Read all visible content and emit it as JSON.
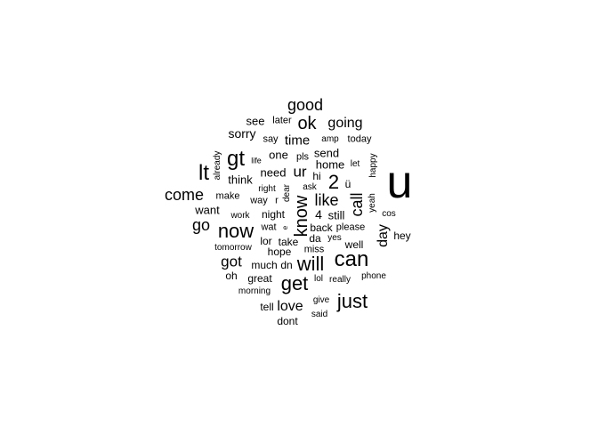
{
  "word_cloud": {
    "text_color": "#000000",
    "background_color": "#ffffff",
    "words": [
      {
        "text": "u",
        "weight": 1.0,
        "vertical": false
      },
      {
        "text": "lt",
        "weight": 0.45,
        "vertical": false
      },
      {
        "text": "gt",
        "weight": 0.45,
        "vertical": false
      },
      {
        "text": "can",
        "weight": 0.45,
        "vertical": false
      },
      {
        "text": "now",
        "weight": 0.4,
        "vertical": false
      },
      {
        "text": "will",
        "weight": 0.4,
        "vertical": false
      },
      {
        "text": "get",
        "weight": 0.4,
        "vertical": false
      },
      {
        "text": "just",
        "weight": 0.38,
        "vertical": false
      },
      {
        "text": "know",
        "weight": 0.38,
        "vertical": true
      },
      {
        "text": "ok",
        "weight": 0.35,
        "vertical": false
      },
      {
        "text": "2",
        "weight": 0.38,
        "vertical": false
      },
      {
        "text": "good",
        "weight": 0.3,
        "vertical": false
      },
      {
        "text": "going",
        "weight": 0.28,
        "vertical": false
      },
      {
        "text": "come",
        "weight": 0.3,
        "vertical": false
      },
      {
        "text": "go",
        "weight": 0.3,
        "vertical": false
      },
      {
        "text": "like",
        "weight": 0.3,
        "vertical": false
      },
      {
        "text": "call",
        "weight": 0.28,
        "vertical": true
      },
      {
        "text": "ur",
        "weight": 0.28,
        "vertical": false
      },
      {
        "text": "got",
        "weight": 0.28,
        "vertical": false
      },
      {
        "text": "love",
        "weight": 0.26,
        "vertical": false
      },
      {
        "text": "day",
        "weight": 0.26,
        "vertical": true
      },
      {
        "text": "time",
        "weight": 0.24,
        "vertical": false
      },
      {
        "text": "4",
        "weight": 0.22,
        "vertical": false
      },
      {
        "text": "sorry",
        "weight": 0.2,
        "vertical": false
      },
      {
        "text": "want",
        "weight": 0.2,
        "vertical": false
      },
      {
        "text": "still",
        "weight": 0.2,
        "vertical": false
      },
      {
        "text": "need",
        "weight": 0.19,
        "vertical": false
      },
      {
        "text": "home",
        "weight": 0.19,
        "vertical": false
      },
      {
        "text": "one",
        "weight": 0.18,
        "vertical": false
      },
      {
        "text": "see",
        "weight": 0.17,
        "vertical": false
      },
      {
        "text": "send",
        "weight": 0.17,
        "vertical": false
      },
      {
        "text": "think",
        "weight": 0.17,
        "vertical": false
      },
      {
        "text": "hi",
        "weight": 0.16,
        "vertical": false
      },
      {
        "text": "ü",
        "weight": 0.17,
        "vertical": false
      },
      {
        "text": "night",
        "weight": 0.16,
        "vertical": false
      },
      {
        "text": "hope",
        "weight": 0.16,
        "vertical": false
      },
      {
        "text": "great",
        "weight": 0.16,
        "vertical": false
      },
      {
        "text": "tell",
        "weight": 0.15,
        "vertical": false
      },
      {
        "text": "dont",
        "weight": 0.15,
        "vertical": false
      },
      {
        "text": "much",
        "weight": 0.15,
        "vertical": false
      },
      {
        "text": "oh",
        "weight": 0.15,
        "vertical": false
      },
      {
        "text": "later",
        "weight": 0.14,
        "vertical": false
      },
      {
        "text": "say",
        "weight": 0.14,
        "vertical": false
      },
      {
        "text": "pls",
        "weight": 0.14,
        "vertical": false
      },
      {
        "text": "hey",
        "weight": 0.14,
        "vertical": false
      },
      {
        "text": "lor",
        "weight": 0.15,
        "vertical": false
      },
      {
        "text": "take",
        "weight": 0.15,
        "vertical": false
      },
      {
        "text": "da",
        "weight": 0.14,
        "vertical": false
      },
      {
        "text": "back",
        "weight": 0.14,
        "vertical": false
      },
      {
        "text": "please",
        "weight": 0.13,
        "vertical": false
      },
      {
        "text": "well",
        "weight": 0.14,
        "vertical": false
      },
      {
        "text": "today",
        "weight": 0.13,
        "vertical": false
      },
      {
        "text": "wat",
        "weight": 0.13,
        "vertical": false
      },
      {
        "text": "way",
        "weight": 0.13,
        "vertical": false
      },
      {
        "text": "r",
        "weight": 0.13,
        "vertical": false
      },
      {
        "text": "happy",
        "weight": 0.12,
        "vertical": true
      },
      {
        "text": "dear",
        "weight": 0.12,
        "vertical": true
      },
      {
        "text": "yeah",
        "weight": 0.12,
        "vertical": true
      },
      {
        "text": "already",
        "weight": 0.11,
        "vertical": true
      },
      {
        "text": "amp",
        "weight": 0.12,
        "vertical": false
      },
      {
        "text": "let",
        "weight": 0.12,
        "vertical": false
      },
      {
        "text": "ask",
        "weight": 0.12,
        "vertical": false
      },
      {
        "text": "miss",
        "weight": 0.12,
        "vertical": false
      },
      {
        "text": "yes",
        "weight": 0.11,
        "vertical": false
      },
      {
        "text": "make",
        "weight": 0.12,
        "vertical": false
      },
      {
        "text": "right",
        "weight": 0.11,
        "vertical": false
      },
      {
        "text": "work",
        "weight": 0.11,
        "vertical": false
      },
      {
        "text": "cos",
        "weight": 0.11,
        "vertical": false
      },
      {
        "text": "tomorrow",
        "weight": 0.11,
        "vertical": false
      },
      {
        "text": "dn",
        "weight": 0.12,
        "vertical": false
      },
      {
        "text": "phone",
        "weight": 0.11,
        "vertical": false
      },
      {
        "text": "lol",
        "weight": 0.11,
        "vertical": false
      },
      {
        "text": "really",
        "weight": 0.11,
        "vertical": false
      },
      {
        "text": "morning",
        "weight": 0.11,
        "vertical": false
      },
      {
        "text": "give",
        "weight": 0.11,
        "vertical": false
      },
      {
        "text": "said",
        "weight": 0.11,
        "vertical": false
      },
      {
        "text": "life",
        "weight": 0.1,
        "vertical": false
      },
      {
        "text": "e",
        "weight": 0.1,
        "vertical": true
      }
    ]
  }
}
